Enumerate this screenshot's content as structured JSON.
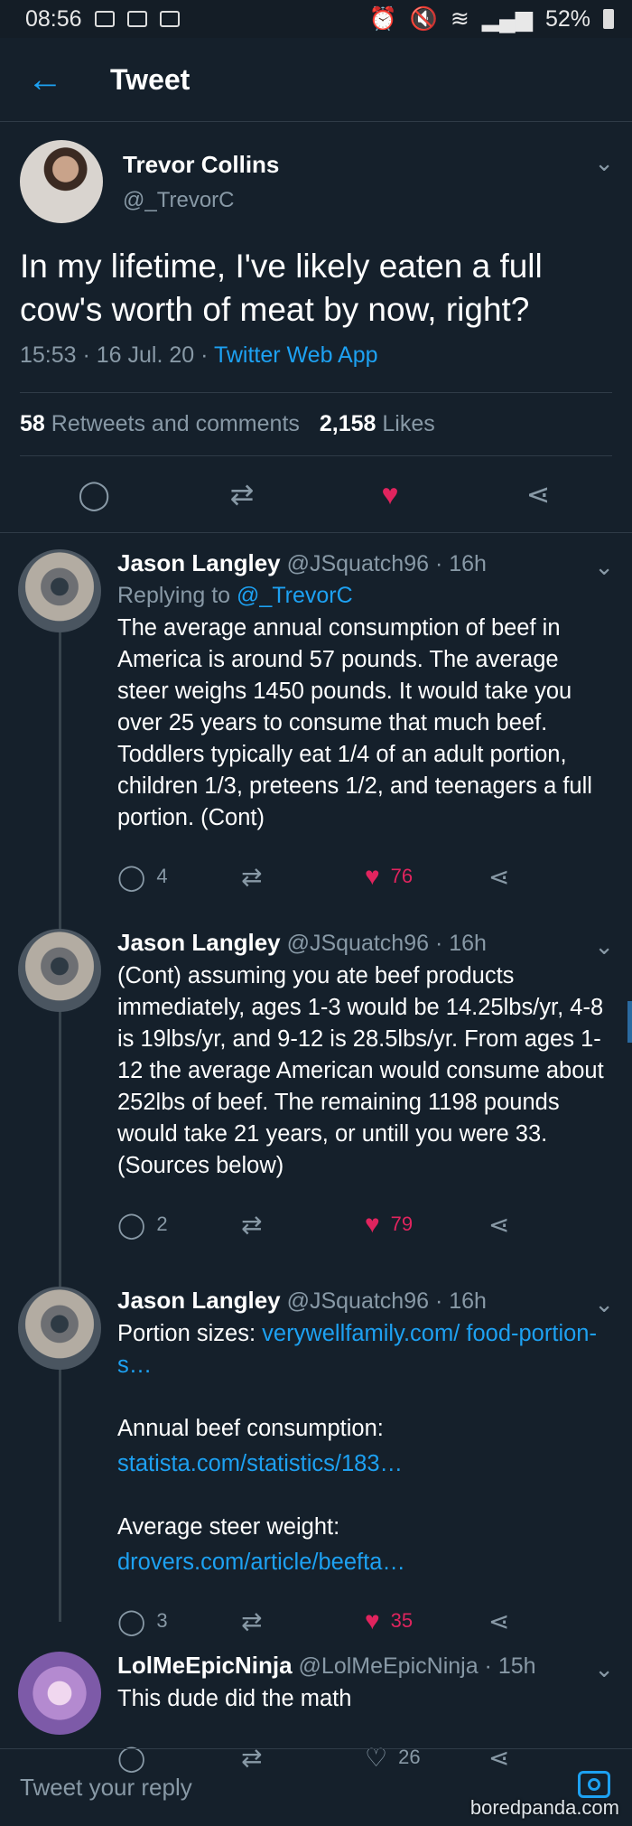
{
  "status_bar": {
    "time": "08:56",
    "battery": "52%"
  },
  "header": {
    "title": "Tweet"
  },
  "main_tweet": {
    "author_name": "Trevor Collins",
    "author_handle": "@_TrevorC",
    "text": "In my lifetime, I've likely eaten a full cow's worth of meat by now, right?",
    "time": "15:53 · 16 Jul. 20 · ",
    "source": "Twitter Web App",
    "retweets_count": "58",
    "retweets_label": "Retweets and comments",
    "likes_count": "2,158",
    "likes_label": "Likes"
  },
  "replies": [
    {
      "name": "Jason Langley",
      "meta": "@JSquatch96 · 16h",
      "replying_label": "Replying to ",
      "replying_handle": "@_TrevorC",
      "text": "The average annual consumption of beef in America is around 57 pounds. The average steer weighs 1450 pounds. It would take you over 25 years to consume that much beef. Toddlers typically eat 1/4 of an adult portion, children 1/3, preteens 1/2, and teenagers a full portion. (Cont)",
      "comments": "4",
      "likes": "76"
    },
    {
      "name": "Jason Langley",
      "meta": "@JSquatch96 · 16h",
      "text": "(Cont) assuming you ate beef products immediately, ages 1-3 would be 14.25lbs/yr, 4-8 is 19lbs/yr, and 9-12 is 28.5lbs/yr. From ages 1-12 the average American would consume about 252lbs of beef. The remaining 1198 pounds would take 21 years, or untill you were 33.\n(Sources below)",
      "comments": "2",
      "likes": "79"
    },
    {
      "name": "Jason Langley",
      "meta": "@JSquatch96 · 16h",
      "line1": "Portion sizes: ",
      "link1": "verywellfamily.com/ food-portion-s…",
      "line2": "Annual beef consumption:",
      "link2": "statista.com/statistics/183…",
      "line3": "Average steer weight:",
      "link3": "drovers.com/article/beefta…",
      "comments": "3",
      "likes": "35"
    },
    {
      "name": "LolMeEpicNinja",
      "meta": "@LolMeEpicNinja · 15h",
      "text": "This dude did the math",
      "likes": "26"
    }
  ],
  "reply_box": {
    "placeholder": "Tweet your reply"
  },
  "watermark": "boredpanda.com",
  "colors": {
    "background": "#15202b",
    "accent": "#1da1f2",
    "like": "#e0245e",
    "muted": "#8899a6"
  }
}
